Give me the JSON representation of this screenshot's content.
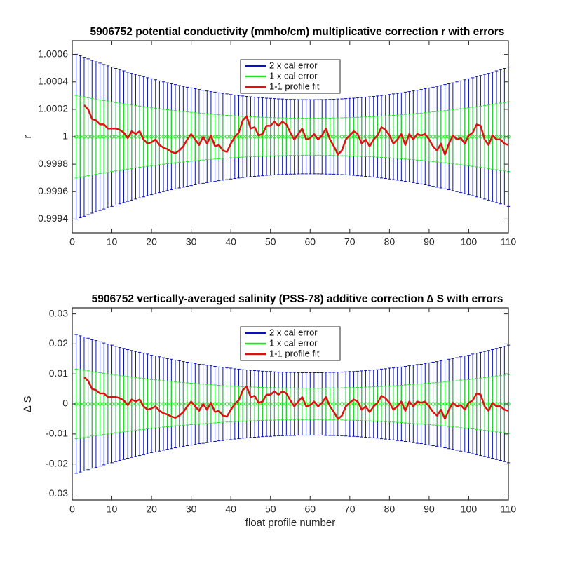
{
  "chart_data": [
    {
      "type": "errorbar",
      "title": "5906752 potential conductivity (mmho/cm) multiplicative correction r with errors",
      "ylabel": "r",
      "x": [
        1,
        2,
        3,
        4,
        5,
        6,
        7,
        8,
        9,
        10,
        11,
        12,
        13,
        14,
        15,
        16,
        17,
        18,
        19,
        20,
        21,
        22,
        23,
        24,
        25,
        26,
        27,
        28,
        29,
        30,
        31,
        32,
        33,
        34,
        35,
        36,
        37,
        38,
        39,
        40,
        41,
        42,
        43,
        44,
        45,
        46,
        47,
        48,
        49,
        50,
        51,
        52,
        53,
        54,
        55,
        56,
        57,
        58,
        59,
        60,
        61,
        62,
        63,
        64,
        65,
        66,
        67,
        68,
        69,
        70,
        71,
        72,
        73,
        74,
        75,
        76,
        77,
        78,
        79,
        80,
        81,
        82,
        83,
        84,
        85,
        86,
        87,
        88,
        89,
        90,
        91,
        92,
        93,
        94,
        95,
        96,
        97,
        98,
        99,
        100,
        101,
        102,
        103,
        104,
        105,
        106,
        107,
        108,
        109,
        110
      ],
      "xlim": [
        0,
        110
      ],
      "xticks": [
        0,
        10,
        20,
        30,
        40,
        50,
        60,
        70,
        80,
        90,
        100,
        110
      ],
      "ylim": [
        0.9993,
        1.0007
      ],
      "yticks": [
        0.9994,
        0.9996,
        0.9998,
        1,
        1.0002,
        1.0004,
        1.0006
      ],
      "legend": "top",
      "series": [
        {
          "name": "2 x cal error",
          "color": "#0a14b4",
          "center": 1,
          "errors": [
            0.000601,
            0.00059,
            0.000579,
            0.000568,
            0.000557,
            0.000547,
            0.000537,
            0.000527,
            0.000517,
            0.000508,
            0.000498,
            0.000489,
            0.00048,
            0.000471,
            0.000462,
            0.000454,
            0.000446,
            0.000438,
            0.00043,
            0.000422,
            0.000415,
            0.000407,
            0.0004,
            0.000393,
            0.000386,
            0.00038,
            0.000373,
            0.000367,
            0.000361,
            0.000356,
            0.00035,
            0.000344,
            0.000339,
            0.000334,
            0.000329,
            0.000325,
            0.00032,
            0.000316,
            0.000312,
            0.000308,
            0.000304,
            0.000301,
            0.000297,
            0.000294,
            0.000291,
            0.000289,
            0.000286,
            0.000284,
            0.000281,
            0.00028,
            0.000278,
            0.000276,
            0.000275,
            0.000273,
            0.000272,
            0.000272,
            0.000271,
            0.00027,
            0.00027,
            0.00027,
            0.00027,
            0.00027,
            0.000271,
            0.000272,
            0.000272,
            0.000273,
            0.000275,
            0.000276,
            0.000278,
            0.00028,
            0.000281,
            0.000284,
            0.000286,
            0.000289,
            0.000291,
            0.000294,
            0.000297,
            0.000301,
            0.000304,
            0.000308,
            0.000312,
            0.000316,
            0.00032,
            0.000325,
            0.000329,
            0.000334,
            0.000339,
            0.000344,
            0.00035,
            0.000356,
            0.000361,
            0.000367,
            0.000373,
            0.00038,
            0.000386,
            0.000393,
            0.0004,
            0.000407,
            0.000415,
            0.000422,
            0.00043,
            0.000438,
            0.000446,
            0.000454,
            0.000462,
            0.000471,
            0.00048,
            0.000489,
            0.000498,
            0.000508
          ]
        },
        {
          "name": "1 x cal error",
          "color": "#1ee61e",
          "center": 1,
          "errors": [
            0.000301,
            0.000295,
            0.00029,
            0.000284,
            0.000279,
            0.000274,
            0.000269,
            0.000264,
            0.000259,
            0.000254,
            0.000249,
            0.000245,
            0.00024,
            0.000236,
            0.000231,
            0.000227,
            0.000223,
            0.000219,
            0.000215,
            0.000211,
            0.000208,
            0.000204,
            0.0002,
            0.000197,
            0.000193,
            0.00019,
            0.000187,
            0.000184,
            0.000181,
            0.000178,
            0.000175,
            0.000172,
            0.00017,
            0.000167,
            0.000165,
            0.000163,
            0.00016,
            0.000158,
            0.000156,
            0.000154,
            0.000152,
            0.000151,
            0.000149,
            0.000147,
            0.000146,
            0.000145,
            0.000143,
            0.000142,
            0.000141,
            0.00014,
            0.000139,
            0.000138,
            0.000138,
            0.000137,
            0.000136,
            0.000136,
            0.000136,
            0.000135,
            0.000135,
            0.000135,
            0.000135,
            0.000135,
            0.000136,
            0.000136,
            0.000136,
            0.000137,
            0.000138,
            0.000138,
            0.000139,
            0.00014,
            0.000141,
            0.000142,
            0.000143,
            0.000145,
            0.000146,
            0.000147,
            0.000149,
            0.000151,
            0.000152,
            0.000154,
            0.000156,
            0.000158,
            0.00016,
            0.000163,
            0.000165,
            0.000167,
            0.00017,
            0.000172,
            0.000175,
            0.000178,
            0.000181,
            0.000184,
            0.000187,
            0.00019,
            0.000193,
            0.000197,
            0.0002,
            0.000204,
            0.000208,
            0.000211,
            0.000215,
            0.000219,
            0.000223,
            0.000227,
            0.000231,
            0.000236,
            0.00024,
            0.000245,
            0.000249,
            0.000254
          ]
        },
        {
          "name": "1-1 profile fit",
          "color": "#e01010",
          "values": [
            null,
            null,
            1.00023,
            1.0002,
            1.00013,
            1.00012,
            1.00009,
            1.00009,
            1.00006,
            1.00006,
            1.00006,
            1.00005,
            1.00003,
            0.99999,
            1.00004,
            1.00002,
            1.00004,
            0.99998,
            0.99995,
            0.99996,
            0.99998,
            0.99994,
            0.99992,
            0.99991,
            0.99989,
            0.99988,
            0.9999,
            0.99993,
            0.99998,
            1.00002,
            0.99998,
            0.99994,
            1,
            0.99995,
            1.00001,
            0.99993,
            0.99994,
            0.9999,
            0.99989,
            0.99995,
            1,
            1.00003,
            1.00012,
            1.00015,
            1.00006,
            1.00007,
            1.00001,
            1.00002,
            1.00008,
            1.00008,
            1.00011,
            1.00008,
            1.00011,
            1.00009,
            1.00003,
            0.99998,
            1.00002,
            1.00006,
            0.99998,
            0.99999,
            1.00002,
            0.99998,
            1.00001,
            1.00006,
            0.99998,
            0.99993,
            0.99987,
            0.9999,
            0.99998,
            1.00001,
            1.00004,
            1.00002,
            0.99995,
            0.99998,
            0.99993,
            0.99998,
            1.00001,
            1.00007,
            1.00005,
            1.00001,
            0.99995,
            0.99998,
            1.00002,
            0.99994,
            1.00002,
            0.99998,
            1.00002,
            1.00001,
            1.00002,
            0.99998,
            0.99993,
            0.9999,
            0.99995,
            0.99987,
            0.99995,
            1.00001,
            0.99998,
            0.99999,
            0.99995,
            1.00001,
            1.00003,
            1.00009,
            1.00008,
            0.99998,
            0.99994,
            1.00001,
            0.99998,
            0.99998,
            0.99995,
            0.99994
          ]
        }
      ]
    },
    {
      "type": "errorbar",
      "title": "5906752 vertically-averaged salinity (PSS-78) additive correction ∆ S with errors",
      "ylabel": "∆ S",
      "xlabel": "float profile number",
      "x": [
        1,
        2,
        3,
        4,
        5,
        6,
        7,
        8,
        9,
        10,
        11,
        12,
        13,
        14,
        15,
        16,
        17,
        18,
        19,
        20,
        21,
        22,
        23,
        24,
        25,
        26,
        27,
        28,
        29,
        30,
        31,
        32,
        33,
        34,
        35,
        36,
        37,
        38,
        39,
        40,
        41,
        42,
        43,
        44,
        45,
        46,
        47,
        48,
        49,
        50,
        51,
        52,
        53,
        54,
        55,
        56,
        57,
        58,
        59,
        60,
        61,
        62,
        63,
        64,
        65,
        66,
        67,
        68,
        69,
        70,
        71,
        72,
        73,
        74,
        75,
        76,
        77,
        78,
        79,
        80,
        81,
        82,
        83,
        84,
        85,
        86,
        87,
        88,
        89,
        90,
        91,
        92,
        93,
        94,
        95,
        96,
        97,
        98,
        99,
        100,
        101,
        102,
        103,
        104,
        105,
        106,
        107,
        108,
        109,
        110
      ],
      "xlim": [
        0,
        110
      ],
      "xticks": [
        0,
        10,
        20,
        30,
        40,
        50,
        60,
        70,
        80,
        90,
        100,
        110
      ],
      "ylim": [
        -0.032,
        0.032
      ],
      "yticks": [
        -0.03,
        -0.02,
        -0.01,
        0,
        0.01,
        0.02,
        0.03
      ],
      "legend": "top",
      "series": [
        {
          "name": "2 x cal error",
          "color": "#0a14b4",
          "center": 0,
          "errors": [
            0.0231,
            0.0227,
            0.0223,
            0.0219,
            0.0214,
            0.0211,
            0.0207,
            0.0203,
            0.0199,
            0.0196,
            0.0192,
            0.0188,
            0.0185,
            0.0181,
            0.0178,
            0.0175,
            0.0172,
            0.0169,
            0.0166,
            0.0162,
            0.016,
            0.0157,
            0.0154,
            0.0151,
            0.0149,
            0.0146,
            0.0144,
            0.0141,
            0.0139,
            0.0137,
            0.0135,
            0.0132,
            0.0131,
            0.0129,
            0.0127,
            0.0125,
            0.0123,
            0.0122,
            0.012,
            0.0119,
            0.0117,
            0.0116,
            0.0114,
            0.0113,
            0.0112,
            0.0111,
            0.011,
            0.0109,
            0.0108,
            0.0108,
            0.0107,
            0.0106,
            0.0106,
            0.0105,
            0.0105,
            0.0105,
            0.0104,
            0.0104,
            0.0104,
            0.0104,
            0.0104,
            0.0104,
            0.0104,
            0.0105,
            0.0105,
            0.0105,
            0.0106,
            0.0106,
            0.0107,
            0.0108,
            0.0108,
            0.0109,
            0.011,
            0.0111,
            0.0112,
            0.0113,
            0.0114,
            0.0116,
            0.0117,
            0.0119,
            0.012,
            0.0122,
            0.0123,
            0.0125,
            0.0127,
            0.0129,
            0.0131,
            0.0132,
            0.0135,
            0.0137,
            0.0139,
            0.0141,
            0.0144,
            0.0146,
            0.0149,
            0.0151,
            0.0154,
            0.0157,
            0.016,
            0.0162,
            0.0166,
            0.0169,
            0.0172,
            0.0175,
            0.0178,
            0.0181,
            0.0185,
            0.0188,
            0.0192,
            0.0196
          ]
        },
        {
          "name": "1 x cal error",
          "color": "#1ee61e",
          "center": 0,
          "errors": [
            0.0116,
            0.0114,
            0.0112,
            0.011,
            0.0107,
            0.0106,
            0.0104,
            0.0102,
            0.01,
            0.0098,
            0.0096,
            0.0094,
            0.0093,
            0.0091,
            0.0089,
            0.0088,
            0.0086,
            0.0085,
            0.0083,
            0.0081,
            0.008,
            0.0079,
            0.0077,
            0.0076,
            0.0075,
            0.0073,
            0.0072,
            0.0071,
            0.007,
            0.0069,
            0.0068,
            0.0066,
            0.0066,
            0.0065,
            0.0064,
            0.0063,
            0.0062,
            0.0061,
            0.006,
            0.006,
            0.0059,
            0.0058,
            0.0057,
            0.0057,
            0.0056,
            0.0056,
            0.0055,
            0.0055,
            0.0054,
            0.0054,
            0.0054,
            0.0053,
            0.0053,
            0.0053,
            0.0053,
            0.0053,
            0.0052,
            0.0052,
            0.0052,
            0.0052,
            0.0052,
            0.0052,
            0.0052,
            0.0053,
            0.0053,
            0.0053,
            0.0053,
            0.0053,
            0.0054,
            0.0054,
            0.0054,
            0.0055,
            0.0055,
            0.0056,
            0.0056,
            0.0057,
            0.0057,
            0.0058,
            0.0059,
            0.006,
            0.006,
            0.0061,
            0.0062,
            0.0063,
            0.0064,
            0.0065,
            0.0066,
            0.0066,
            0.0068,
            0.0069,
            0.007,
            0.0071,
            0.0072,
            0.0073,
            0.0075,
            0.0076,
            0.0077,
            0.0079,
            0.008,
            0.0081,
            0.0083,
            0.0085,
            0.0086,
            0.0088,
            0.0089,
            0.0091,
            0.0093,
            0.0094,
            0.0096,
            0.0098
          ]
        },
        {
          "name": "1-1 profile fit",
          "color": "#e01010",
          "values": [
            null,
            null,
            0.0089,
            0.0077,
            0.005,
            0.0046,
            0.0035,
            0.0035,
            0.0023,
            0.0023,
            0.0023,
            0.0019,
            0.0012,
            -0.0004,
            0.0015,
            0.0008,
            0.0015,
            -0.0008,
            -0.0019,
            -0.0015,
            -0.0008,
            -0.0023,
            -0.0031,
            -0.0035,
            -0.0042,
            -0.0046,
            -0.0039,
            -0.0027,
            -0.0008,
            0.0008,
            -0.0008,
            -0.0023,
            0,
            -0.0019,
            0.0004,
            -0.0027,
            -0.0023,
            -0.0039,
            -0.0042,
            -0.0019,
            0,
            0.0012,
            0.0046,
            0.0058,
            0.0023,
            0.0027,
            0.0004,
            0.0008,
            0.0031,
            0.0031,
            0.0042,
            0.0031,
            0.0042,
            0.0035,
            0.0012,
            -0.0008,
            0.0008,
            0.0023,
            -0.0008,
            -0.0004,
            0.0008,
            -0.0008,
            0.0004,
            0.0023,
            -0.0008,
            -0.0027,
            -0.005,
            -0.0039,
            -0.0008,
            0.0004,
            0.0015,
            0.0008,
            -0.0019,
            -0.0008,
            -0.0027,
            -0.0008,
            0.0004,
            0.0027,
            0.0019,
            0.0004,
            -0.0019,
            -0.0008,
            0.0008,
            -0.0023,
            0.0008,
            -0.0008,
            0.0008,
            0.0004,
            0.0008,
            -0.0008,
            -0.0027,
            -0.0039,
            -0.0019,
            -0.005,
            -0.0019,
            0.0004,
            -0.0008,
            -0.0004,
            -0.0019,
            0.0004,
            0.0012,
            0.0035,
            0.0031,
            -0.0008,
            -0.0023,
            0.0004,
            -0.0008,
            -0.0008,
            -0.0019,
            -0.0023
          ]
        }
      ]
    }
  ]
}
